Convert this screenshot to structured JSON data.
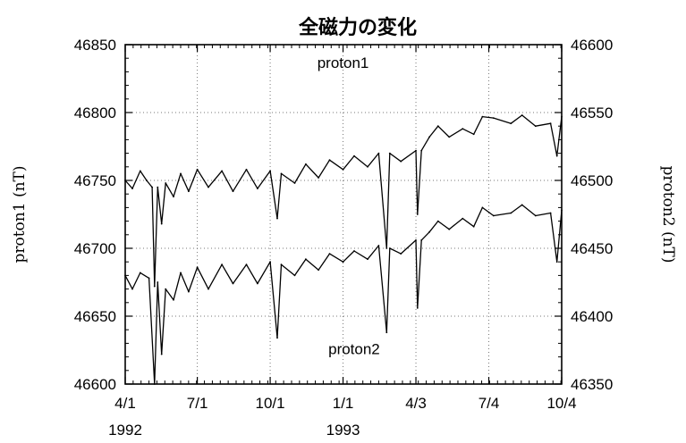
{
  "chart_data": {
    "type": "line",
    "title": "全磁力の変化",
    "left_axis": {
      "label": "proton1 (nT)",
      "ylim": [
        46600,
        46850
      ],
      "ticks": [
        "46600",
        "46650",
        "46700",
        "46750",
        "46800",
        "46850"
      ]
    },
    "right_axis": {
      "label": "proton2 (nT)",
      "ylim": [
        46350,
        46600
      ],
      "ticks": [
        "46350",
        "46400",
        "46450",
        "46500",
        "46550",
        "46600"
      ]
    },
    "x_axis": {
      "range": [
        "1992-04-01",
        "1993-10-04"
      ],
      "tick_dates": [
        "1992-04-01",
        "1992-07-01",
        "1992-10-01",
        "1993-01-01",
        "1993-04-03",
        "1993-07-04",
        "1993-10-04"
      ],
      "tick_labels": [
        "4/1",
        "7/1",
        "10/1",
        "1/1",
        "4/3",
        "7/4",
        "10/4"
      ],
      "year_labels": [
        {
          "text": "1992",
          "date": "1992-04-01"
        },
        {
          "text": "1993",
          "date": "1993-01-01"
        }
      ]
    },
    "grid": true,
    "series": [
      {
        "name": "proton1",
        "axis": "left",
        "points": [
          [
            "1992-04-01",
            46750
          ],
          [
            "1992-04-10",
            46744
          ],
          [
            "1992-04-20",
            46757
          ],
          [
            "1992-04-28",
            46750
          ],
          [
            "1992-05-05",
            46745
          ],
          [
            "1992-05-08",
            46672
          ],
          [
            "1992-05-12",
            46745
          ],
          [
            "1992-05-17",
            46718
          ],
          [
            "1992-05-22",
            46748
          ],
          [
            "1992-06-01",
            46738
          ],
          [
            "1992-06-10",
            46755
          ],
          [
            "1992-06-20",
            46742
          ],
          [
            "1992-07-01",
            46758
          ],
          [
            "1992-07-15",
            46745
          ],
          [
            "1992-08-01",
            46757
          ],
          [
            "1992-08-15",
            46742
          ],
          [
            "1992-09-01",
            46758
          ],
          [
            "1992-09-15",
            46744
          ],
          [
            "1992-10-01",
            46757
          ],
          [
            "1992-10-10",
            46722
          ],
          [
            "1992-10-15",
            46755
          ],
          [
            "1992-11-01",
            46748
          ],
          [
            "1992-11-15",
            46762
          ],
          [
            "1992-12-01",
            46752
          ],
          [
            "1992-12-15",
            46765
          ],
          [
            "1993-01-01",
            46758
          ],
          [
            "1993-01-15",
            46768
          ],
          [
            "1993-02-01",
            46760
          ],
          [
            "1993-02-15",
            46770
          ],
          [
            "1993-02-25",
            46700
          ],
          [
            "1993-03-01",
            46770
          ],
          [
            "1993-03-15",
            46764
          ],
          [
            "1993-04-03",
            46772
          ],
          [
            "1993-04-05",
            46725
          ],
          [
            "1993-04-10",
            46772
          ],
          [
            "1993-04-20",
            46782
          ],
          [
            "1993-05-01",
            46790
          ],
          [
            "1993-05-15",
            46782
          ],
          [
            "1993-06-01",
            46788
          ],
          [
            "1993-06-15",
            46784
          ],
          [
            "1993-06-26",
            46797
          ],
          [
            "1993-07-10",
            46796
          ],
          [
            "1993-08-01",
            46792
          ],
          [
            "1993-08-15",
            46798
          ],
          [
            "1993-09-01",
            46790
          ],
          [
            "1993-09-20",
            46792
          ],
          [
            "1993-09-28",
            46768
          ],
          [
            "1993-10-04",
            46797
          ]
        ]
      },
      {
        "name": "proton2",
        "axis": "right",
        "points": [
          [
            "1992-04-01",
            46430
          ],
          [
            "1992-04-10",
            46420
          ],
          [
            "1992-04-20",
            46432
          ],
          [
            "1992-05-01",
            46428
          ],
          [
            "1992-05-08",
            46350
          ],
          [
            "1992-05-12",
            46425
          ],
          [
            "1992-05-17",
            46372
          ],
          [
            "1992-05-22",
            46420
          ],
          [
            "1992-06-01",
            46412
          ],
          [
            "1992-06-10",
            46432
          ],
          [
            "1992-06-20",
            46418
          ],
          [
            "1992-07-01",
            46436
          ],
          [
            "1992-07-15",
            46420
          ],
          [
            "1992-08-01",
            46438
          ],
          [
            "1992-08-15",
            46424
          ],
          [
            "1992-09-01",
            46438
          ],
          [
            "1992-09-15",
            46424
          ],
          [
            "1992-10-01",
            46440
          ],
          [
            "1992-10-10",
            46384
          ],
          [
            "1992-10-15",
            46438
          ],
          [
            "1992-11-01",
            46430
          ],
          [
            "1992-11-15",
            46442
          ],
          [
            "1992-12-01",
            46434
          ],
          [
            "1992-12-15",
            46446
          ],
          [
            "1993-01-01",
            46440
          ],
          [
            "1993-01-15",
            46448
          ],
          [
            "1993-02-01",
            46442
          ],
          [
            "1993-02-15",
            46452
          ],
          [
            "1993-02-25",
            46388
          ],
          [
            "1993-03-01",
            46450
          ],
          [
            "1993-03-15",
            46446
          ],
          [
            "1993-04-03",
            46456
          ],
          [
            "1993-04-05",
            46406
          ],
          [
            "1993-04-10",
            46456
          ],
          [
            "1993-04-20",
            46462
          ],
          [
            "1993-05-01",
            46470
          ],
          [
            "1993-05-15",
            46464
          ],
          [
            "1993-06-01",
            46472
          ],
          [
            "1993-06-15",
            46466
          ],
          [
            "1993-06-26",
            46480
          ],
          [
            "1993-07-10",
            46474
          ],
          [
            "1993-08-01",
            46476
          ],
          [
            "1993-08-15",
            46482
          ],
          [
            "1993-09-01",
            46474
          ],
          [
            "1993-09-20",
            46476
          ],
          [
            "1993-09-28",
            46440
          ],
          [
            "1993-10-04",
            46478
          ]
        ]
      }
    ],
    "annotations": [
      {
        "text": "proton1",
        "date": "1993-01-01",
        "value": 46833,
        "axis": "left"
      },
      {
        "text": "proton2",
        "date": "1993-01-15",
        "value": 46622,
        "axis": "left"
      }
    ]
  }
}
